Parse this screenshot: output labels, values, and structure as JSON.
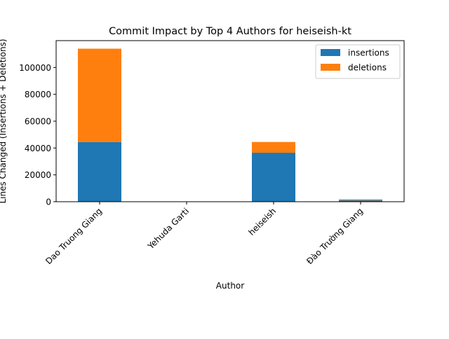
{
  "chart_data": {
    "type": "bar",
    "stacked": true,
    "title": "Commit Impact by Top 4 Authors for heiseish-kt",
    "xlabel": "Author",
    "ylabel": "Lines Changed (Insertions + Deletions)",
    "categories": [
      "Dao Truong Giang",
      "Yehuda Garti",
      "heiseish",
      "Đào Trường Giang"
    ],
    "series": [
      {
        "name": "insertions",
        "color": "#1f77b4",
        "values": [
          44500,
          0,
          36500,
          1100
        ]
      },
      {
        "name": "deletions",
        "color": "#ff7f0e",
        "values": [
          69500,
          0,
          8000,
          700
        ]
      }
    ],
    "ylim": [
      0,
      120000
    ],
    "yticks": [
      0,
      20000,
      40000,
      60000,
      80000,
      100000
    ],
    "legend_position": "top-right",
    "grid": false
  }
}
